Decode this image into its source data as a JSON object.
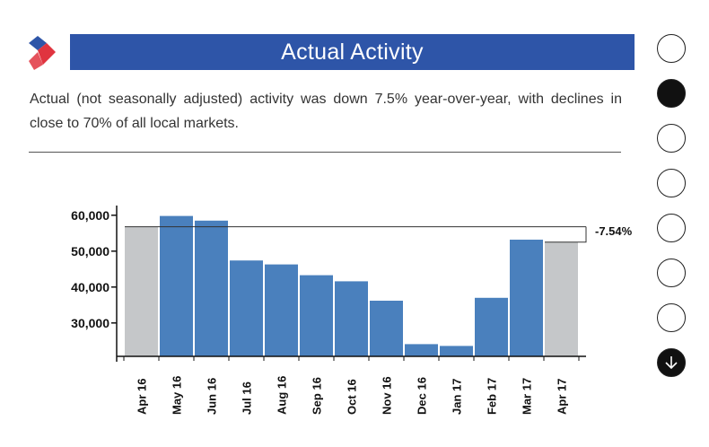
{
  "header": {
    "title": "Actual Activity"
  },
  "description": "Actual (not seasonally adjusted) activity was down 7.5% year-over-year, with declines in close to 70% of all local markets.",
  "colors": {
    "brand_blue": "#2e55a8",
    "bar_blue": "#4a80bd",
    "bar_gray": "#c5c7c9",
    "logo_red": "#e0343f"
  },
  "nav": {
    "dots": [
      {
        "state": "inactive"
      },
      {
        "state": "active"
      },
      {
        "state": "inactive"
      },
      {
        "state": "inactive"
      },
      {
        "state": "inactive"
      },
      {
        "state": "inactive"
      },
      {
        "state": "inactive"
      },
      {
        "state": "next",
        "icon": "arrow-down-icon"
      }
    ]
  },
  "chart_data": {
    "type": "bar",
    "categories": [
      "Apr 16",
      "May 16",
      "Jun 16",
      "Jul 16",
      "Aug 16",
      "Sep 16",
      "Oct 16",
      "Nov 16",
      "Dec 16",
      "Jan 17",
      "Feb 17",
      "Mar 17",
      "Apr 17"
    ],
    "values": [
      56800,
      59800,
      58500,
      47400,
      46300,
      43300,
      41600,
      36200,
      24100,
      23600,
      37000,
      53200,
      52500
    ],
    "highlighted": [
      "Apr 16",
      "Apr 17"
    ],
    "yticks": [
      30000,
      40000,
      50000,
      60000
    ],
    "ytick_labels": [
      "30,000",
      "40,000",
      "50,000",
      "60,000"
    ],
    "ylim": [
      20700,
      60700
    ],
    "annotation": "-7.54%",
    "title": "",
    "xlabel": "",
    "ylabel": ""
  }
}
